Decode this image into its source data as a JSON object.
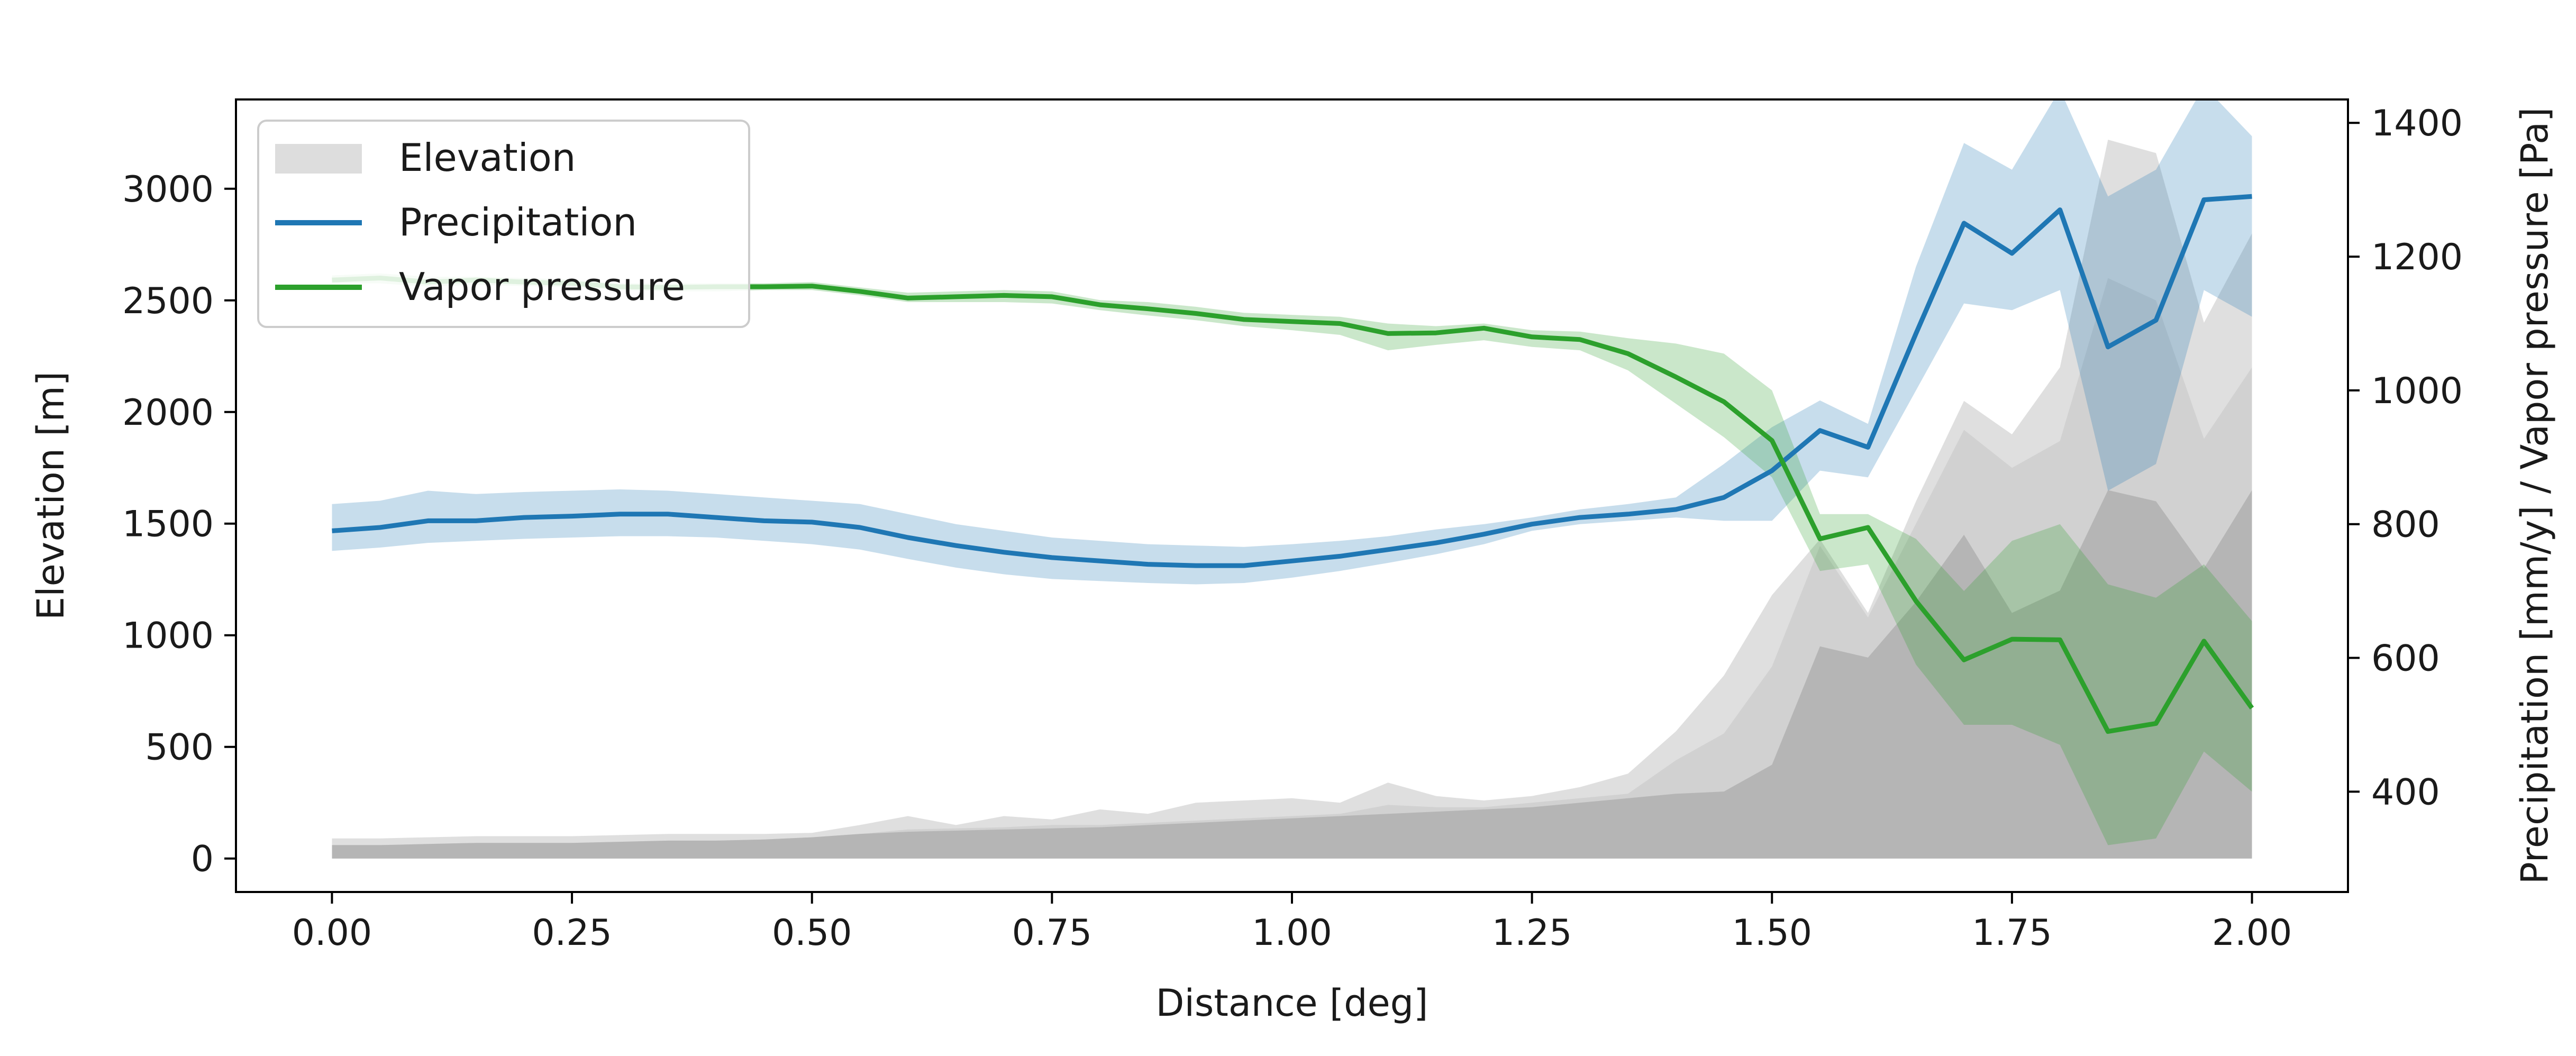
{
  "chart_data": {
    "type": "line",
    "title": "",
    "xlabel": "Distance [deg]",
    "ylabel_left": "Elevation [m]",
    "ylabel_right": "Precipitation [mm/y] / Vapor pressure [Pa]",
    "xlim": [
      -0.1,
      2.1
    ],
    "ylim_left": [
      -150,
      3400
    ],
    "ylim_right": [
      250,
      1435
    ],
    "x_ticks": [
      "0.00",
      "0.25",
      "0.50",
      "0.75",
      "1.00",
      "1.25",
      "1.50",
      "1.75",
      "2.00"
    ],
    "y_left_ticks": [
      "0",
      "500",
      "1000",
      "1500",
      "2000",
      "2500",
      "3000"
    ],
    "y_right_ticks": [
      "400",
      "600",
      "800",
      "1000",
      "1200",
      "1400"
    ],
    "legend": {
      "placement": "upper-left",
      "entries": [
        "Elevation",
        "Precipitation",
        "Vapor pressure"
      ]
    },
    "grid": false,
    "colors": {
      "elevation_outer": "#dddddd",
      "elevation_inner": "#b3b3b3",
      "precipitation": "#1f77b4",
      "vapor_pressure": "#2ca02c"
    },
    "x": [
      0.0,
      0.05,
      0.1,
      0.15,
      0.2,
      0.25,
      0.3,
      0.35,
      0.4,
      0.45,
      0.5,
      0.55,
      0.6,
      0.65,
      0.7,
      0.75,
      0.8,
      0.85,
      0.9,
      0.95,
      1.0,
      1.05,
      1.1,
      1.15,
      1.2,
      1.25,
      1.3,
      1.35,
      1.4,
      1.45,
      1.5,
      1.55,
      1.6,
      1.65,
      1.7,
      1.75,
      1.8,
      1.85,
      1.9,
      1.95,
      2.0
    ],
    "series": [
      {
        "name": "Elevation",
        "axis": "left",
        "kind": "band",
        "outer_upper": [
          90,
          90,
          95,
          100,
          100,
          100,
          105,
          110,
          110,
          110,
          115,
          150,
          190,
          150,
          190,
          175,
          220,
          200,
          250,
          260,
          270,
          250,
          340,
          280,
          260,
          280,
          320,
          380,
          570,
          820,
          1180,
          1430,
          1100,
          1600,
          2050,
          1900,
          2200,
          3220,
          3160,
          2400,
          2800
        ],
        "outer_lower": [
          40,
          40,
          40,
          45,
          45,
          45,
          45,
          45,
          50,
          50,
          60,
          70,
          70,
          80,
          90,
          90,
          100,
          100,
          110,
          120,
          120,
          120,
          150,
          150,
          160,
          170,
          180,
          190,
          220,
          250,
          300,
          400,
          500,
          550,
          600,
          650,
          700,
          800,
          800,
          900,
          1000
        ],
        "inner_upper": [
          60,
          60,
          65,
          70,
          70,
          70,
          75,
          80,
          80,
          85,
          95,
          110,
          130,
          135,
          140,
          150,
          150,
          160,
          170,
          180,
          190,
          200,
          240,
          230,
          230,
          250,
          270,
          290,
          440,
          560,
          860,
          1400,
          1080,
          1500,
          1920,
          1750,
          1870,
          2600,
          2500,
          1880,
          2200
        ],
        "inner_lower": [
          0,
          0,
          0,
          0,
          0,
          0,
          0,
          0,
          0,
          0,
          0,
          0,
          0,
          0,
          0,
          0,
          0,
          0,
          0,
          0,
          0,
          0,
          0,
          0,
          0,
          0,
          0,
          0,
          0,
          0,
          0,
          0,
          0,
          0,
          0,
          0,
          0,
          0,
          0,
          0,
          0
        ],
        "core": [
          60,
          60,
          65,
          70,
          70,
          70,
          75,
          80,
          80,
          85,
          95,
          110,
          120,
          125,
          130,
          135,
          140,
          150,
          160,
          170,
          180,
          190,
          200,
          210,
          220,
          230,
          250,
          270,
          290,
          300,
          420,
          950,
          900,
          1150,
          1450,
          1100,
          1200,
          1650,
          1600,
          1300,
          1650
        ]
      },
      {
        "name": "Precipitation",
        "axis": "right",
        "kind": "line",
        "values": [
          790,
          795,
          805,
          805,
          810,
          812,
          815,
          815,
          810,
          805,
          803,
          795,
          780,
          768,
          758,
          750,
          745,
          740,
          738,
          738,
          745,
          752,
          762,
          772,
          785,
          800,
          810,
          815,
          822,
          840,
          880,
          940,
          915,
          1085,
          1250,
          1205,
          1270,
          1065,
          1105,
          1285,
          1290
        ],
        "upper": [
          830,
          835,
          850,
          845,
          848,
          850,
          852,
          850,
          845,
          840,
          835,
          830,
          815,
          800,
          790,
          780,
          775,
          770,
          768,
          766,
          770,
          775,
          782,
          792,
          800,
          810,
          822,
          830,
          840,
          890,
          945,
          985,
          950,
          1185,
          1370,
          1330,
          1450,
          1290,
          1330,
          1455,
          1380
        ],
        "lower": [
          760,
          765,
          772,
          775,
          778,
          780,
          782,
          782,
          780,
          775,
          770,
          762,
          748,
          735,
          725,
          718,
          715,
          712,
          710,
          712,
          720,
          730,
          742,
          755,
          770,
          790,
          800,
          805,
          810,
          805,
          805,
          880,
          870,
          1000,
          1130,
          1120,
          1150,
          850,
          890,
          1150,
          1110
        ]
      },
      {
        "name": "Vapor pressure",
        "axis": "right",
        "kind": "line",
        "values": [
          1165,
          1168,
          1162,
          1165,
          1162,
          1160,
          1155,
          1154,
          1155,
          1155,
          1156,
          1148,
          1138,
          1140,
          1142,
          1140,
          1128,
          1122,
          1115,
          1106,
          1103,
          1100,
          1085,
          1086,
          1093,
          1080,
          1076,
          1055,
          1020,
          983,
          925,
          778,
          795,
          685,
          597,
          628,
          627,
          490,
          502,
          625,
          525
        ],
        "upper": [
          1172,
          1175,
          1170,
          1170,
          1168,
          1166,
          1160,
          1160,
          1160,
          1160,
          1162,
          1154,
          1146,
          1148,
          1150,
          1148,
          1135,
          1132,
          1125,
          1116,
          1113,
          1110,
          1100,
          1096,
          1100,
          1090,
          1088,
          1078,
          1070,
          1055,
          1000,
          815,
          815,
          778,
          700,
          775,
          800,
          710,
          690,
          740,
          655
        ],
        "lower": [
          1160,
          1160,
          1155,
          1158,
          1156,
          1154,
          1150,
          1148,
          1148,
          1150,
          1150,
          1142,
          1132,
          1132,
          1132,
          1130,
          1120,
          1112,
          1105,
          1096,
          1090,
          1083,
          1060,
          1068,
          1075,
          1065,
          1060,
          1030,
          980,
          930,
          870,
          730,
          740,
          590,
          500,
          500,
          470,
          320,
          330,
          460,
          400
        ]
      }
    ]
  }
}
